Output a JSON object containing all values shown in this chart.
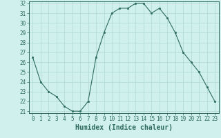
{
  "x": [
    0,
    1,
    2,
    3,
    4,
    5,
    6,
    7,
    8,
    9,
    10,
    11,
    12,
    13,
    14,
    15,
    16,
    17,
    18,
    19,
    20,
    21,
    22,
    23
  ],
  "y": [
    26.5,
    24.0,
    23.0,
    22.5,
    21.5,
    21.0,
    21.0,
    22.0,
    26.5,
    29.0,
    31.0,
    31.5,
    31.5,
    32.0,
    32.0,
    31.0,
    31.5,
    30.5,
    29.0,
    27.0,
    26.0,
    25.0,
    23.5,
    22.0
  ],
  "xlabel": "Humidex (Indice chaleur)",
  "ylim": [
    21,
    32
  ],
  "xlim": [
    -0.5,
    23.5
  ],
  "yticks": [
    21,
    22,
    23,
    24,
    25,
    26,
    27,
    28,
    29,
    30,
    31,
    32
  ],
  "xticks": [
    0,
    1,
    2,
    3,
    4,
    5,
    6,
    7,
    8,
    9,
    10,
    11,
    12,
    13,
    14,
    15,
    16,
    17,
    18,
    19,
    20,
    21,
    22,
    23
  ],
  "line_color": "#2d6b5e",
  "marker_color": "#2d6b5e",
  "bg_color": "#cff0ec",
  "grid_color": "#aed8d2",
  "axis_color": "#2d6b5e",
  "label_color": "#2d6b5e",
  "tick_label_fontsize": 5.5,
  "xlabel_fontsize": 7.0
}
